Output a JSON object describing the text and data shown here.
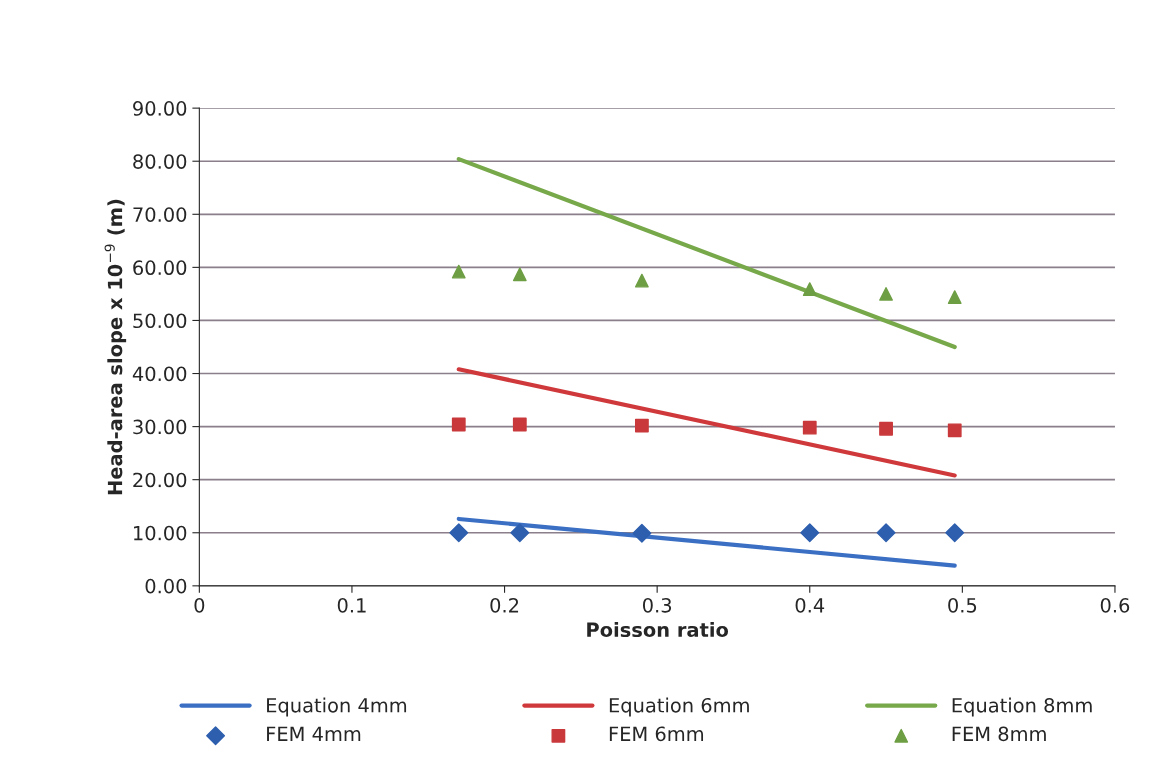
{
  "chart_data": {
    "type": "scatter",
    "xlabel": "Poisson ratio",
    "ylabel": "Head-area slope x 10$^{−9}$ (m)",
    "xlim": [
      0,
      0.6
    ],
    "xticks": [
      0,
      0.1,
      0.2,
      0.3,
      0.4,
      0.5,
      0.6
    ],
    "ylim": [
      0,
      90
    ],
    "yticks": [
      {
        "value": 0,
        "label": "0.00"
      },
      {
        "value": 10,
        "label": "10.00"
      },
      {
        "value": 20,
        "label": "20.00"
      },
      {
        "value": 30,
        "label": "30.00"
      },
      {
        "value": 40,
        "label": "40.00"
      },
      {
        "value": 50,
        "label": "50.00"
      },
      {
        "value": 60,
        "label": "60.00"
      },
      {
        "value": 70,
        "label": "70.00"
      },
      {
        "value": 80,
        "label": "80.00"
      },
      {
        "value": 90,
        "label": "90.00"
      }
    ],
    "grid": "y",
    "legend": "bottom",
    "series": [
      {
        "name": "Equation 4mm",
        "type": "line",
        "color": "#3a6fc4",
        "x": [
          0.17,
          0.495
        ],
        "values": [
          12.6,
          3.8
        ],
        "marker": "none",
        "line_style": "solid"
      },
      {
        "name": "FEM 4mm",
        "color": "#2e5fae",
        "x": [
          0.17,
          0.21,
          0.29,
          0.4,
          0.45,
          0.495
        ],
        "values": [
          10.0,
          10.0,
          9.9,
          10.0,
          10.0,
          10.0
        ],
        "marker": "diamond"
      },
      {
        "name": "Equation 6mm",
        "type": "line",
        "color": "#d0393b",
        "x": [
          0.17,
          0.495
        ],
        "values": [
          40.8,
          20.8
        ],
        "marker": "none",
        "line_style": "solid"
      },
      {
        "name": "FEM 6mm",
        "color": "#c9393b",
        "x": [
          0.17,
          0.21,
          0.29,
          0.4,
          0.45,
          0.495
        ],
        "values": [
          30.4,
          30.4,
          30.2,
          29.8,
          29.6,
          29.3
        ],
        "marker": "square"
      },
      {
        "name": "Equation 8mm",
        "type": "line",
        "color": "#77a84a",
        "x": [
          0.17,
          0.495
        ],
        "values": [
          80.4,
          45.0
        ],
        "marker": "none",
        "line_style": "solid"
      },
      {
        "name": "FEM 8mm",
        "color": "#6e9e44",
        "x": [
          0.17,
          0.21,
          0.29,
          0.4,
          0.45,
          0.495
        ],
        "values": [
          59.2,
          58.7,
          57.5,
          55.9,
          55.0,
          54.4
        ],
        "marker": "triangle"
      }
    ]
  }
}
